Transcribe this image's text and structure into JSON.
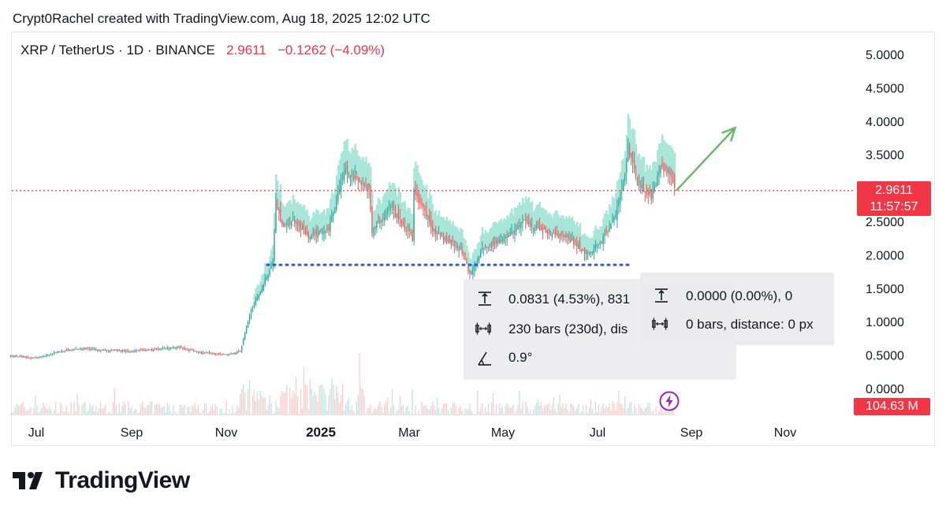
{
  "header": {
    "attribution": "Crypt0Rachel created with TradingView.com, Aug 18, 2025 12:02 UTC"
  },
  "symbol": {
    "title": "XRP / TetherUS · 1D · BINANCE",
    "last": "2.9611",
    "change": "−0.1262 (−4.09%)"
  },
  "price_tag": {
    "price": "2.9611",
    "countdown": "11:57:57"
  },
  "volume_tag": "104.63 M",
  "measure_1": {
    "price_change": "0.0831 (4.53%), 831",
    "bars": "230 bars (230d), dis",
    "angle": "0.9°"
  },
  "measure_2": {
    "price_change": "0.0000 (0.00%), 0",
    "bars": "0 bars, distance: 0 px"
  },
  "logo": "TradingView",
  "colors": {
    "up": "#26a69a",
    "down": "#ef5350",
    "band": "#a8e6da",
    "support": "#2b5bd7",
    "arrow": "#66bb6a",
    "last_price": "#f23645"
  },
  "chart_data": {
    "type": "line",
    "title": "XRP / TetherUS · 1D · BINANCE",
    "x_ticks": [
      "Jul",
      "Sep",
      "Nov",
      "2025",
      "Mar",
      "May",
      "Jul",
      "Sep",
      "Nov"
    ],
    "y_ticks": [
      "5.0000",
      "4.5000",
      "4.0000",
      "3.5000",
      "3.0000",
      "2.5000",
      "2.0000",
      "1.5000",
      "1.0000",
      "0.5000",
      "0.0000"
    ],
    "ylim": [
      0,
      5
    ],
    "last_price": 2.9611,
    "support_level": 1.85,
    "series": [
      {
        "values": [
          [
            "2024-06-15",
            0.49
          ],
          [
            "2024-07-01",
            0.45
          ],
          [
            "2024-07-15",
            0.55
          ],
          [
            "2024-08-01",
            0.6
          ],
          [
            "2024-08-15",
            0.57
          ],
          [
            "2024-09-01",
            0.56
          ],
          [
            "2024-09-15",
            0.58
          ],
          [
            "2024-10-01",
            0.62
          ],
          [
            "2024-10-15",
            0.54
          ],
          [
            "2024-11-01",
            0.5
          ],
          [
            "2024-11-10",
            0.56
          ],
          [
            "2024-11-16",
            1.1
          ],
          [
            "2024-11-23",
            1.45
          ],
          [
            "2024-12-01",
            1.9
          ],
          [
            "2024-12-03",
            2.8
          ],
          [
            "2024-12-07",
            2.45
          ],
          [
            "2024-12-15",
            2.5
          ],
          [
            "2024-12-25",
            2.25
          ],
          [
            "2025-01-01",
            2.35
          ],
          [
            "2025-01-06",
            2.4
          ],
          [
            "2025-01-16",
            3.25
          ],
          [
            "2025-01-22",
            3.15
          ],
          [
            "2025-02-01",
            3.0
          ],
          [
            "2025-02-03",
            2.35
          ],
          [
            "2025-02-15",
            2.7
          ],
          [
            "2025-03-01",
            2.25
          ],
          [
            "2025-03-02",
            2.95
          ],
          [
            "2025-03-15",
            2.35
          ],
          [
            "2025-04-01",
            2.1
          ],
          [
            "2025-04-07",
            1.7
          ],
          [
            "2025-04-15",
            2.1
          ],
          [
            "2025-05-01",
            2.25
          ],
          [
            "2025-05-12",
            2.5
          ],
          [
            "2025-05-25",
            2.35
          ],
          [
            "2025-06-10",
            2.25
          ],
          [
            "2025-06-22",
            2.0
          ],
          [
            "2025-07-01",
            2.2
          ],
          [
            "2025-07-10",
            2.6
          ],
          [
            "2025-07-15",
            3.05
          ],
          [
            "2025-07-18",
            3.6
          ],
          [
            "2025-07-24",
            3.1
          ],
          [
            "2025-08-02",
            2.85
          ],
          [
            "2025-08-08",
            3.3
          ],
          [
            "2025-08-14",
            3.2
          ],
          [
            "2025-08-18",
            2.96
          ]
        ]
      }
    ],
    "annotations": [
      {
        "type": "horizontal_dotted_line",
        "value": 1.85,
        "from": "2024-12-01",
        "to": "2025-07-10"
      },
      {
        "type": "arrow",
        "from": [
          "2025-08-18",
          2.96
        ],
        "to": [
          "2025-09-25",
          3.9
        ]
      }
    ]
  }
}
